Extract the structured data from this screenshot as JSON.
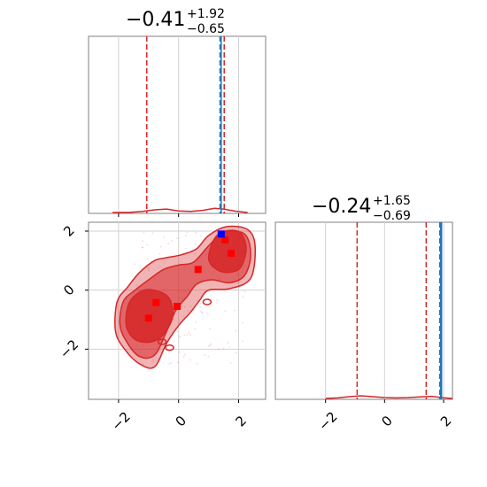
{
  "chart_data": [
    {
      "type": "histogram",
      "panel": "marginal-x",
      "title_main": "−0.41",
      "title_sup": "+1.92",
      "title_sub": "−0.65",
      "xlim": [
        -3.0,
        2.9
      ],
      "grid": true,
      "colors": {
        "hist": "#d62728",
        "median": "#1f77b4",
        "quantile": "#d62728",
        "truth": "#0000ff"
      },
      "quantile_lines": [
        -1.06,
        1.52
      ],
      "median_lines": [
        1.38,
        1.42
      ],
      "truth_marker": {
        "x": 1.42
      },
      "hist_points": [
        [
          -2.2,
          0.0
        ],
        [
          -1.6,
          0.1
        ],
        [
          -1.2,
          0.4
        ],
        [
          -0.8,
          1.0
        ],
        [
          -0.4,
          1.3
        ],
        [
          0.0,
          0.6
        ],
        [
          0.4,
          0.4
        ],
        [
          0.8,
          0.8
        ],
        [
          1.2,
          1.6
        ],
        [
          1.5,
          1.3
        ],
        [
          1.9,
          0.5
        ],
        [
          2.3,
          0.0
        ]
      ]
    },
    {
      "type": "contour",
      "panel": "joint",
      "xlim": [
        -3.0,
        2.9
      ],
      "ylim": [
        -3.7,
        2.3
      ],
      "xticks": [
        "−2",
        "0",
        "2"
      ],
      "yticks": [
        "−2",
        "0",
        "2"
      ],
      "grid": true,
      "colors": {
        "fill": "#d62728",
        "line": "#d62728",
        "truth": "#0000ff"
      },
      "contour_levels": [
        [
          [
            -2.1,
            -1.4
          ],
          [
            -2.05,
            -0.4
          ],
          [
            -1.7,
            0.1
          ],
          [
            -1.3,
            0.6
          ],
          [
            -0.8,
            1.0
          ],
          [
            -0.4,
            1.1
          ],
          [
            0.1,
            1.2
          ],
          [
            0.6,
            1.4
          ],
          [
            1.0,
            1.85
          ],
          [
            1.6,
            2.15
          ],
          [
            2.3,
            2.05
          ],
          [
            2.55,
            1.5
          ],
          [
            2.4,
            0.4
          ],
          [
            1.7,
            0.05
          ],
          [
            1.0,
            0.0
          ],
          [
            0.7,
            -0.35
          ],
          [
            0.4,
            -0.75
          ],
          [
            0.0,
            -1.2
          ],
          [
            -0.4,
            -1.8
          ],
          [
            -0.8,
            -2.6
          ],
          [
            -1.3,
            -2.5
          ],
          [
            -1.8,
            -2.0
          ]
        ],
        [
          [
            -1.95,
            -1.2
          ],
          [
            -1.85,
            -0.4
          ],
          [
            -1.45,
            0.0
          ],
          [
            -1.0,
            0.35
          ],
          [
            -0.5,
            0.7
          ],
          [
            0.0,
            0.85
          ],
          [
            0.5,
            0.95
          ],
          [
            1.0,
            1.5
          ],
          [
            1.5,
            1.95
          ],
          [
            2.2,
            1.9
          ],
          [
            2.4,
            1.2
          ],
          [
            2.2,
            0.5
          ],
          [
            1.7,
            0.25
          ],
          [
            1.1,
            0.35
          ],
          [
            0.6,
            0.2
          ],
          [
            0.3,
            -0.2
          ],
          [
            -0.1,
            -0.7
          ],
          [
            -0.4,
            -1.4
          ],
          [
            -0.8,
            -2.2
          ],
          [
            -1.3,
            -2.25
          ],
          [
            -1.7,
            -1.8
          ]
        ],
        [
          [
            -1.75,
            -0.9
          ],
          [
            -1.6,
            -0.35
          ],
          [
            -1.15,
            0.0
          ],
          [
            -0.65,
            -0.05
          ],
          [
            -0.3,
            -0.3
          ],
          [
            -0.2,
            -0.9
          ],
          [
            -0.5,
            -1.5
          ],
          [
            -0.9,
            -1.75
          ],
          [
            -1.4,
            -1.7
          ],
          [
            -1.7,
            -1.35
          ]
        ]
      ],
      "inner_blob_2": [
        [
          1.0,
          1.1
        ],
        [
          1.2,
          1.75
        ],
        [
          1.55,
          2.0
        ],
        [
          2.05,
          1.95
        ],
        [
          2.25,
          1.4
        ],
        [
          2.05,
          0.75
        ],
        [
          1.6,
          0.6
        ],
        [
          1.2,
          0.75
        ]
      ],
      "small_contours": [
        [
          0.95,
          -0.4
        ],
        [
          -0.3,
          -1.95
        ],
        [
          -0.55,
          -1.75
        ]
      ],
      "markers": [
        [
          -0.75,
          -0.42
        ],
        [
          -1.0,
          -0.95
        ],
        [
          -0.05,
          -0.55
        ],
        [
          0.65,
          0.7
        ],
        [
          1.55,
          1.7
        ],
        [
          1.75,
          1.25
        ]
      ],
      "truth_marker": [
        1.42,
        1.9
      ]
    },
    {
      "type": "histogram",
      "panel": "marginal-y",
      "title_main": "−0.24",
      "title_sup": "+1.65",
      "title_sub": "−0.69",
      "xlim": [
        -3.7,
        2.3
      ],
      "xticks": [
        "−2",
        "0",
        "2"
      ],
      "grid": true,
      "colors": {
        "hist": "#d62728",
        "median": "#1f77b4",
        "quantile": "#d62728",
        "truth": "#0000ff"
      },
      "quantile_lines": [
        -0.93,
        1.41
      ],
      "median_lines": [
        1.87,
        1.9,
        1.93
      ],
      "truth_marker": {
        "x": 1.9
      },
      "hist_points": [
        [
          -2.0,
          0.0
        ],
        [
          -1.6,
          0.3
        ],
        [
          -1.2,
          1.0
        ],
        [
          -0.8,
          1.5
        ],
        [
          -0.4,
          1.0
        ],
        [
          0.0,
          0.5
        ],
        [
          0.4,
          0.3
        ],
        [
          0.8,
          0.5
        ],
        [
          1.2,
          0.9
        ],
        [
          1.6,
          1.2
        ],
        [
          2.0,
          0.4
        ],
        [
          2.3,
          0.0
        ]
      ]
    }
  ]
}
